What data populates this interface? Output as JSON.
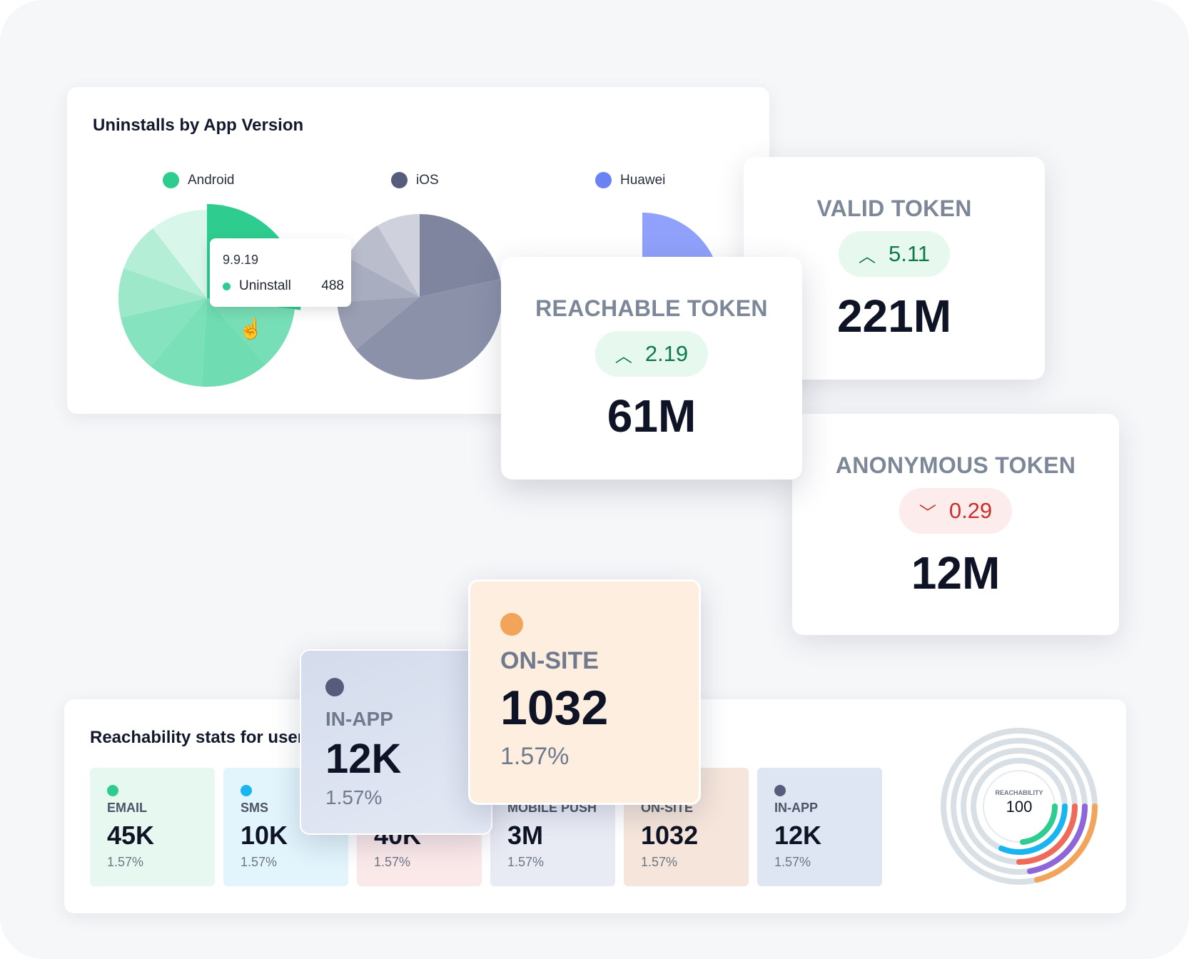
{
  "uninstalls": {
    "title": "Uninstalls by App Version",
    "legend": [
      {
        "name": "Android",
        "color": "#2ecc8f"
      },
      {
        "name": "iOS",
        "color": "#565d7c"
      },
      {
        "name": "Huawei",
        "color": "#6b82f5"
      }
    ],
    "tooltip": {
      "version": "9.9.19",
      "series": "Uninstall",
      "value": "488"
    }
  },
  "chart_data": [
    {
      "type": "pie",
      "title": "",
      "series_name": "Android",
      "slice_colors": [
        "#2ecc8f",
        "#77dfb7",
        "#6fdcb2",
        "#7ae0b8",
        "#86e3bf",
        "#9ce8c9",
        "#b4eed7",
        "#d8f6ea"
      ],
      "values": [
        27,
        11.5,
        12.5,
        10,
        10.5,
        9,
        9,
        10.5
      ]
    },
    {
      "type": "pie",
      "title": "",
      "series_name": "iOS",
      "slice_colors": [
        "#7f859f",
        "#8b91a9",
        "#9a9fb4",
        "#a8adbf",
        "#babdcc",
        "#cfd1dc"
      ],
      "values": [
        21.5,
        42.5,
        10,
        9,
        8.5,
        8.5
      ]
    },
    {
      "type": "pie",
      "title": "",
      "series_name": "Huawei",
      "slice_colors": [
        "#8fa1fa",
        "#e6eafd",
        "#c5cdfb",
        "#a9b5f9"
      ],
      "values": [
        25,
        8,
        8,
        9
      ]
    }
  ],
  "tokens": {
    "valid": {
      "label": "VALID TOKEN",
      "change": "5.11",
      "value": "221M"
    },
    "reachable": {
      "label": "REACHABLE TOKEN",
      "change": "2.19",
      "value": "61M"
    },
    "anonymous": {
      "label": "ANONYMOUS TOKEN",
      "change": "0.29",
      "value": "12M"
    }
  },
  "reachability": {
    "title": "Reachability stats for users",
    "channels": [
      {
        "label": "EMAIL",
        "value": "45K",
        "pct": "1.57%",
        "color": "#2ecc8f",
        "bg": "#e6f8f0"
      },
      {
        "label": "SMS",
        "value": "10K",
        "pct": "1.57%",
        "color": "#19b5f0",
        "bg": "#e2f4fc"
      },
      {
        "label": "",
        "value": "40K",
        "pct": "1.57%",
        "color": "#f06a5a",
        "bg": "#fbe9ea"
      },
      {
        "label": "MOBILE PUSH",
        "value": "3M",
        "pct": "1.57%",
        "color": "#8e66d9",
        "bg": "#e9ebf4"
      },
      {
        "label": "ON-SITE",
        "value": "1032",
        "pct": "1.57%",
        "color": "#f3a45b",
        "bg": "#f5e5da"
      },
      {
        "label": "IN-APP",
        "value": "12K",
        "pct": "1.57%",
        "color": "#565d7c",
        "bg": "#dfe6f3"
      }
    ],
    "gauge": {
      "label": "REACHABILITY",
      "value": "100"
    }
  },
  "highlight": {
    "inapp": {
      "label": "IN-APP",
      "value": "12K",
      "pct": "1.57%",
      "color": "#565d7c"
    },
    "onsite": {
      "label": "ON-SITE",
      "value": "1032",
      "pct": "1.57%",
      "color": "#f3a45b"
    }
  }
}
